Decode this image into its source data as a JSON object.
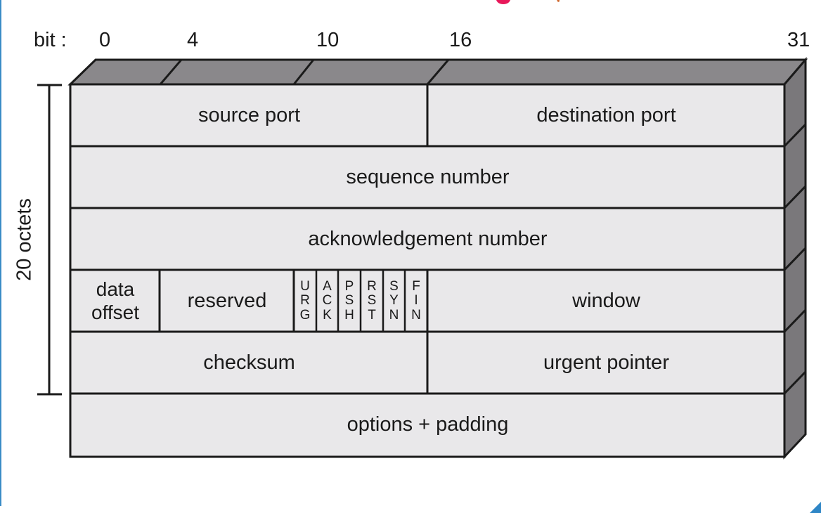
{
  "bit_axis": {
    "prefix": "bit :",
    "ticks": [
      "0",
      "4",
      "10",
      "16",
      "31"
    ]
  },
  "side_label": "20 octets",
  "rows": [
    {
      "fields": [
        {
          "key": "source_port",
          "label": "source port"
        },
        {
          "key": "destination_port",
          "label": "destination port"
        }
      ]
    },
    {
      "fields": [
        {
          "key": "sequence_number",
          "label": "sequence number"
        }
      ]
    },
    {
      "fields": [
        {
          "key": "acknowledgement_number",
          "label": "acknowledgement number"
        }
      ]
    },
    {
      "fields": [
        {
          "key": "data_offset",
          "label_lines": [
            "data",
            "offset"
          ]
        },
        {
          "key": "reserved",
          "label": "reserved"
        },
        {
          "key": "flags",
          "flags": [
            {
              "letters": [
                "U",
                "R",
                "G"
              ]
            },
            {
              "letters": [
                "A",
                "C",
                "K"
              ]
            },
            {
              "letters": [
                "P",
                "S",
                "H"
              ]
            },
            {
              "letters": [
                "R",
                "S",
                "T"
              ]
            },
            {
              "letters": [
                "S",
                "Y",
                "N"
              ]
            },
            {
              "letters": [
                "F",
                "I",
                "N"
              ]
            }
          ]
        },
        {
          "key": "window",
          "label": "window"
        }
      ]
    },
    {
      "fields": [
        {
          "key": "checksum",
          "label": "checksum"
        },
        {
          "key": "urgent_pointer",
          "label": "urgent pointer"
        }
      ]
    },
    {
      "fields": [
        {
          "key": "options_padding",
          "label": "options + padding"
        }
      ]
    }
  ],
  "colors": {
    "cell_fill": "#e9e8ea",
    "top_face": "#8a888b",
    "side_face": "#7a787b",
    "line": "#1a1a1a",
    "window_accent": "#3a8cc6"
  }
}
